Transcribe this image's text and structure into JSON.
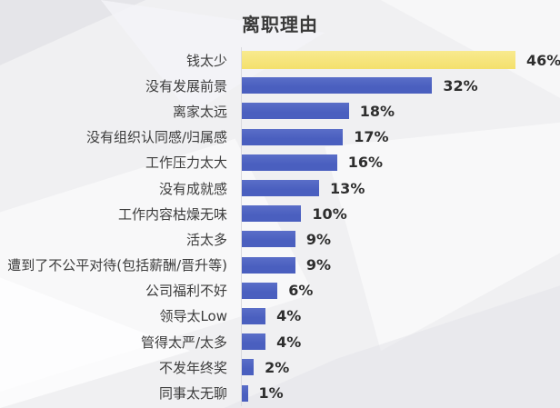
{
  "title": "离职理由",
  "colors": {
    "highlight_bar": "#F4E06C",
    "highlight_bar_top": "#F8EA8F",
    "bar": "#4A5FBF",
    "bar_top": "#5A6EC8",
    "axis_line": "#D9D9DE",
    "label_text": "#3C3C3C",
    "value_text": "#2E2E2E",
    "background": "#F0F0F2"
  },
  "chart_data": {
    "type": "bar",
    "orientation": "horizontal",
    "title": "离职理由",
    "xlabel": "",
    "ylabel": "",
    "grid": false,
    "legend": false,
    "xlim": [
      0,
      50
    ],
    "unit": "%",
    "highlight_index": 0,
    "categories": [
      "钱太少",
      "没有发展前景",
      "离家太远",
      "没有组织认同感/归属感",
      "工作压力太大",
      "没有成就感",
      "工作内容枯燥无味",
      "活太多",
      "遭到了不公平对待(包括薪酬/晋升等)",
      "公司福利不好",
      "领导太Low",
      "管得太严/太多",
      "不发年终奖",
      "同事太无聊"
    ],
    "values": [
      46,
      32,
      18,
      17,
      16,
      13,
      10,
      9,
      9,
      6,
      4,
      4,
      2,
      1
    ],
    "value_labels": [
      "46%",
      "32%",
      "18%",
      "17%",
      "16%",
      "13%",
      "10%",
      "9%",
      "9%",
      "6%",
      "4%",
      "4%",
      "2%",
      "1%"
    ]
  }
}
